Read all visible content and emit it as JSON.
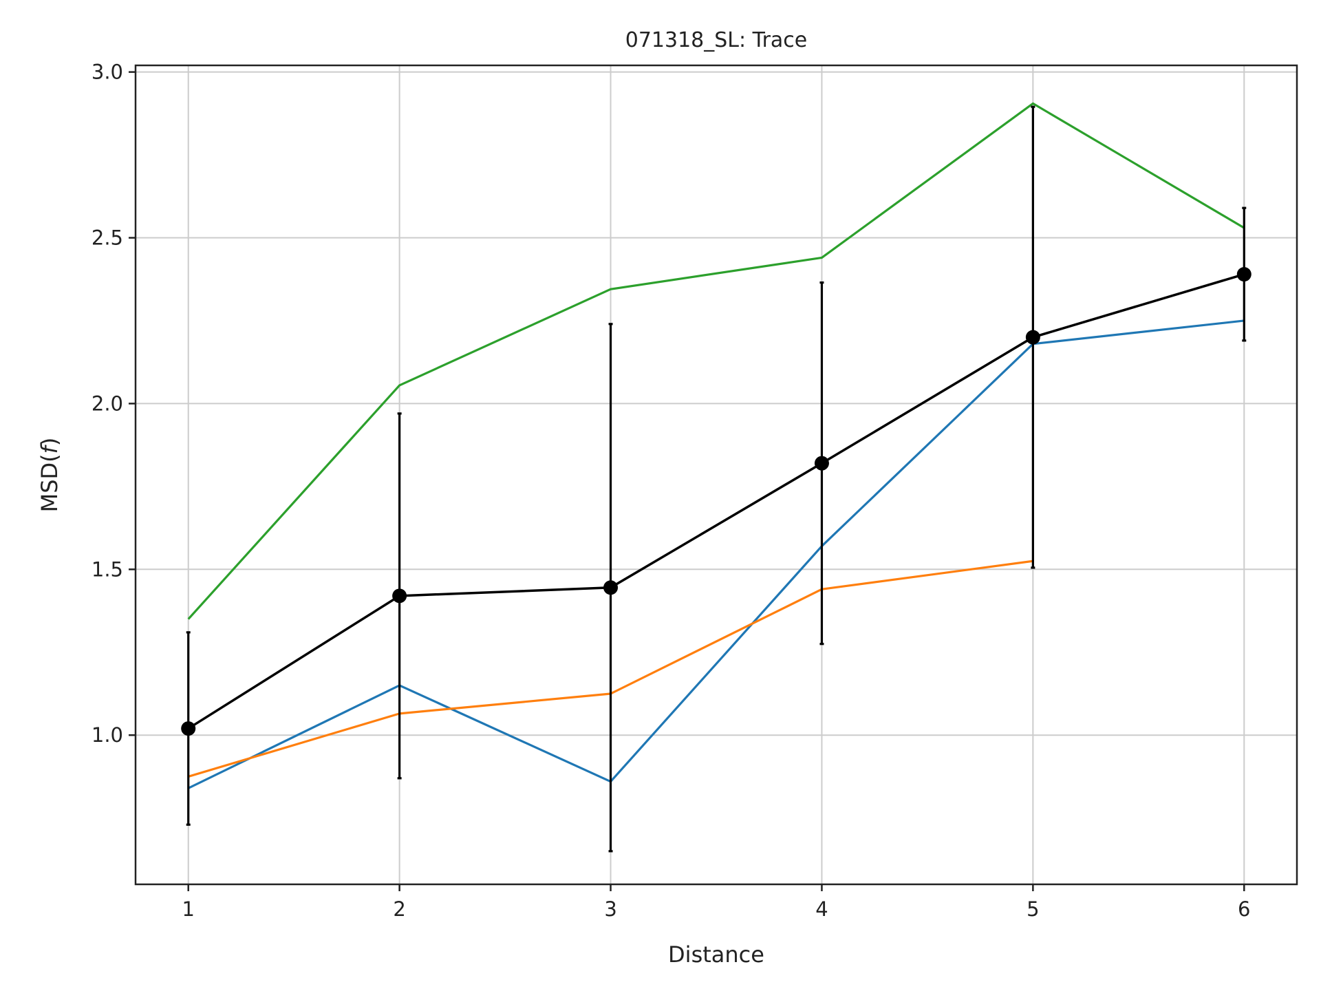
{
  "chart_data": {
    "type": "line",
    "title": "071318_SL: Trace",
    "xlabel": "Distance",
    "ylabel": "MSD(f)",
    "ylabel_main": "MSD(",
    "ylabel_var": "f",
    "ylabel_close": ")",
    "x": [
      1,
      2,
      3,
      4,
      5,
      6
    ],
    "xlim": [
      0.75,
      6.25
    ],
    "ylim": [
      0.55,
      3.02
    ],
    "xticks": [
      1,
      2,
      3,
      4,
      5,
      6
    ],
    "yticks": [
      1.0,
      1.5,
      2.0,
      2.5,
      3.0
    ],
    "ytick_labels": [
      "1.0",
      "1.5",
      "2.0",
      "2.5",
      "3.0"
    ],
    "grid": true,
    "series": [
      {
        "color": "#1f77b4",
        "x": [
          1,
          2,
          3,
          4,
          5,
          6
        ],
        "values": [
          0.84,
          1.15,
          0.86,
          1.57,
          2.18,
          2.25
        ]
      },
      {
        "color": "#ff7f0e",
        "x": [
          1,
          2,
          3,
          4,
          5
        ],
        "values": [
          0.875,
          1.065,
          1.125,
          1.44,
          1.525
        ]
      },
      {
        "color": "#2ca02c",
        "x": [
          1,
          2,
          3,
          4,
          5,
          6
        ],
        "values": [
          1.35,
          2.055,
          2.345,
          2.44,
          2.905,
          2.53
        ]
      }
    ],
    "mean_series": {
      "color": "#000000",
      "x": [
        1,
        2,
        3,
        4,
        5,
        6
      ],
      "values": [
        1.02,
        1.42,
        1.445,
        1.82,
        2.2,
        2.39
      ],
      "errors": [
        0.29,
        0.55,
        0.795,
        0.545,
        0.695,
        0.2
      ]
    }
  }
}
